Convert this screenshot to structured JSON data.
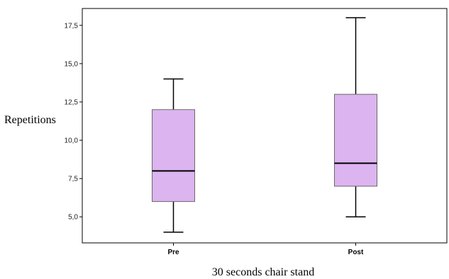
{
  "chart_data": {
    "type": "boxplot",
    "title": "",
    "xlabel": "30 seconds chair  stand",
    "ylabel": "Repetitions",
    "categories": [
      "Pre",
      "Post"
    ],
    "yticks": [
      "5,0",
      "7,5",
      "10,0",
      "12,5",
      "15,0",
      "17,5"
    ],
    "ytick_values": [
      5.0,
      7.5,
      10.0,
      12.5,
      15.0,
      17.5
    ],
    "ylim": [
      3.3,
      18.6
    ],
    "grid": false,
    "boxes": [
      {
        "category": "Pre",
        "min": 4,
        "q1": 6,
        "median": 8,
        "q3": 12,
        "max": 14
      },
      {
        "category": "Post",
        "min": 5,
        "q1": 7,
        "median": 8.5,
        "q3": 13,
        "max": 18
      }
    ],
    "colors": {
      "box_fill": "#dcb4f0",
      "box_stroke": "#6a6a6a",
      "whisker": "#000000",
      "axis": "#000000"
    }
  }
}
